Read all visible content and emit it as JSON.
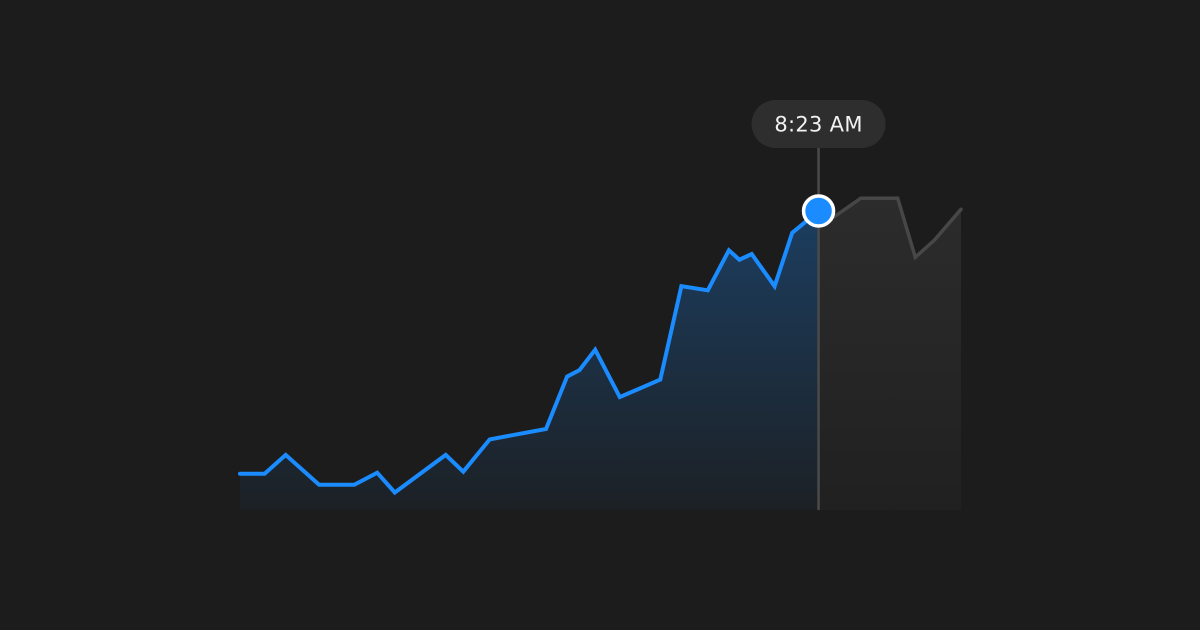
{
  "chart_data": {
    "type": "area",
    "title": "",
    "xlabel": "",
    "ylabel": "",
    "grid": false,
    "legend": "none",
    "xlim": [
      0,
      41
    ],
    "ylim": [
      0,
      100
    ],
    "series": [
      {
        "role": "elapsed",
        "color": "#1a8cff",
        "x": [
          0,
          1.4,
          2.6,
          4.5,
          6.5,
          7.8,
          8.8,
          11.7,
          12.7,
          14.2,
          17.4,
          18.6,
          19.3,
          20.2,
          21.6,
          23.9,
          25.1,
          26.6,
          27.8,
          28.4,
          29.1,
          30.4,
          31.4,
          32.9
        ],
        "y": [
          10.8,
          10.8,
          16.4,
          7.5,
          7.5,
          11.1,
          5.2,
          16.4,
          11.4,
          21.0,
          24.1,
          39.7,
          41.6,
          47.7,
          33.6,
          38.8,
          66.6,
          65.4,
          77.3,
          74.5,
          76.2,
          66.6,
          82.5,
          89.0
        ]
      },
      {
        "role": "remaining",
        "color": "#474747",
        "x": [
          32.9,
          33.8,
          35.3,
          37.4,
          38.4,
          39.5,
          41
        ],
        "y": [
          89.0,
          87.3,
          92.8,
          92.8,
          75.2,
          80.4,
          89.5
        ]
      }
    ],
    "marker": {
      "x": 32.9,
      "y": 89.0,
      "label": "8:23 AM"
    }
  },
  "colors": {
    "background": "#1c1c1c",
    "accent": "#1a8cff",
    "muted_line": "#474747",
    "tooltip_bg": "#2e2e2e"
  }
}
